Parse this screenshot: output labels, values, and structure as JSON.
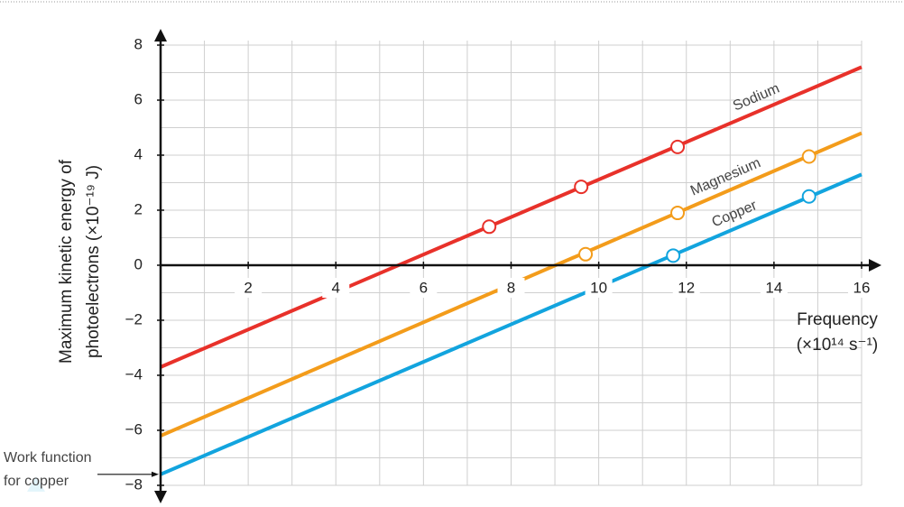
{
  "chart_data": {
    "type": "line",
    "y_label": [
      "Maximum kinetic energy of",
      "photoelectrons (×10⁻¹⁹ J)"
    ],
    "x_label": [
      "Frequency",
      "(×10¹⁴ s⁻¹)"
    ],
    "annotation": [
      "Work function",
      "for copper"
    ],
    "xlim": [
      0,
      16
    ],
    "ylim": [
      -8,
      8
    ],
    "xticks": [
      2,
      4,
      6,
      8,
      10,
      12,
      14,
      16
    ],
    "yticks": [
      {
        "value": -8,
        "label": "−8"
      },
      {
        "value": -6,
        "label": "−6"
      },
      {
        "value": -4,
        "label": "−4"
      },
      {
        "value": -2,
        "label": "−2"
      },
      0,
      2,
      4,
      6,
      8
    ],
    "xgrid": [
      1,
      2,
      3,
      4,
      5,
      6,
      7,
      8,
      9,
      10,
      11,
      12,
      13,
      14,
      15,
      16
    ],
    "ygrid": [
      -8,
      -7,
      -6,
      -5,
      -4,
      -3,
      -2,
      -1,
      1,
      2,
      3,
      4,
      5,
      6,
      7,
      8
    ],
    "grid": true,
    "series": [
      {
        "name": "Sodium",
        "color": "#e8312a",
        "x": [
          0,
          16
        ],
        "values": [
          -3.7,
          7.2
        ],
        "points": {
          "x": [
            7.5,
            9.6,
            11.8
          ],
          "values": [
            1.4,
            2.85,
            4.3
          ]
        }
      },
      {
        "name": "Magnesium",
        "color": "#f39c1b",
        "x": [
          0,
          16
        ],
        "values": [
          -6.2,
          4.8
        ],
        "points": {
          "x": [
            9.7,
            11.8,
            14.8
          ],
          "values": [
            0.4,
            1.9,
            3.95
          ]
        }
      },
      {
        "name": "Copper",
        "color": "#12a4de",
        "x": [
          0,
          16
        ],
        "values": [
          -7.6,
          3.3
        ],
        "points": {
          "x": [
            11.7,
            14.8
          ],
          "values": [
            0.35,
            2.5
          ]
        }
      }
    ]
  }
}
